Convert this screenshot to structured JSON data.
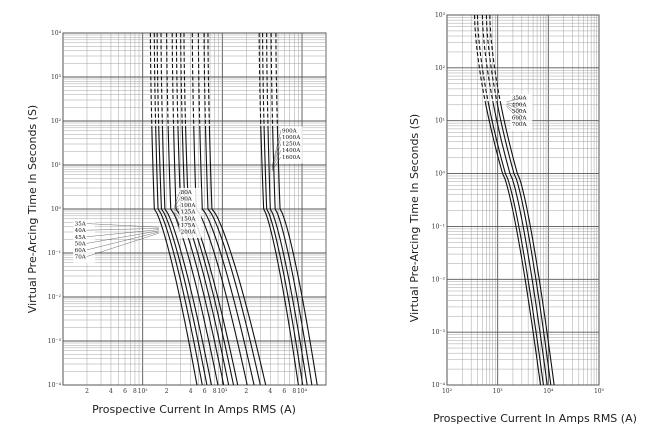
{
  "chart_data": [
    {
      "type": "line",
      "title": "",
      "xlabel": "Prospective Current In Amps RMS (A)",
      "ylabel": "Virtual Pre-Arcing Time In Seconds (S)",
      "x_scale": "log",
      "y_scale": "log",
      "xlim": [
        10,
        20000
      ],
      "ylim": [
        0.0001,
        10000
      ],
      "grid": true,
      "x_ticks": [
        {
          "v": 20,
          "label": "2"
        },
        {
          "v": 40,
          "label": "4"
        },
        {
          "v": 60,
          "label": "6"
        },
        {
          "v": 80,
          "label": "8"
        },
        {
          "v": 100,
          "label": "10²"
        },
        {
          "v": 200,
          "label": "2"
        },
        {
          "v": 400,
          "label": "4"
        },
        {
          "v": 600,
          "label": "6"
        },
        {
          "v": 800,
          "label": "8"
        },
        {
          "v": 1000,
          "label": "10³"
        },
        {
          "v": 2000,
          "label": "2"
        },
        {
          "v": 4000,
          "label": "4"
        },
        {
          "v": 6000,
          "label": "6"
        },
        {
          "v": 8000,
          "label": "8"
        },
        {
          "v": 10000,
          "label": "10⁴"
        }
      ],
      "y_ticks": [
        {
          "v": 10000,
          "label": "10⁴"
        },
        {
          "v": 1000,
          "label": "10³"
        },
        {
          "v": 100,
          "label": "10²"
        },
        {
          "v": 10,
          "label": "10¹"
        },
        {
          "v": 1,
          "label": "10⁰"
        },
        {
          "v": 0.1,
          "label": "10⁻¹"
        },
        {
          "v": 0.01,
          "label": "10⁻²"
        },
        {
          "v": 0.001,
          "label": "10⁻³"
        },
        {
          "v": 0.0001,
          "label": "10⁻⁴"
        }
      ],
      "label_groups": [
        {
          "labels": [
            "35A",
            "40A",
            "45A",
            "50A",
            "60A",
            "70A"
          ],
          "line_to_x": 160,
          "anchor_y": 0.32
        },
        {
          "labels": [
            "80A",
            "90A",
            "100A",
            "125A",
            "150A",
            "175A",
            "200A"
          ],
          "line_to_x": 250,
          "anchor_y": 0.9
        },
        {
          "labels": [
            "900A",
            "1000A",
            "1250A",
            "1400A",
            "1600A"
          ],
          "line_to_x": 4200,
          "anchor_y": 8
        }
      ],
      "series": [
        {
          "rating": "35A",
          "x_at_10000s": 125,
          "x_at_1s": 140,
          "x_at_0.0001s": 480
        },
        {
          "rating": "40A",
          "x_at_10000s": 140,
          "x_at_1s": 156,
          "x_at_0.0001s": 560
        },
        {
          "rating": "45A",
          "x_at_10000s": 152,
          "x_at_1s": 172,
          "x_at_0.0001s": 640
        },
        {
          "rating": "50A",
          "x_at_10000s": 170,
          "x_at_1s": 190,
          "x_at_0.0001s": 730
        },
        {
          "rating": "60A",
          "x_at_10000s": 200,
          "x_at_1s": 225,
          "x_at_0.0001s": 880
        },
        {
          "rating": "70A",
          "x_at_10000s": 235,
          "x_at_1s": 262,
          "x_at_0.0001s": 1040
        },
        {
          "rating": "80A",
          "x_at_10000s": 265,
          "x_at_1s": 300,
          "x_at_0.0001s": 1200
        },
        {
          "rating": "90A",
          "x_at_10000s": 300,
          "x_at_1s": 340,
          "x_at_0.0001s": 1380
        },
        {
          "rating": "100A",
          "x_at_10000s": 330,
          "x_at_1s": 375,
          "x_at_0.0001s": 1560
        },
        {
          "rating": "125A",
          "x_at_10000s": 420,
          "x_at_1s": 470,
          "x_at_0.0001s": 2050
        },
        {
          "rating": "150A",
          "x_at_10000s": 500,
          "x_at_1s": 560,
          "x_at_0.0001s": 2500
        },
        {
          "rating": "175A",
          "x_at_10000s": 590,
          "x_at_1s": 660,
          "x_at_0.0001s": 3000
        },
        {
          "rating": "200A",
          "x_at_10000s": 660,
          "x_at_1s": 740,
          "x_at_0.0001s": 3500
        },
        {
          "rating": "900A",
          "x_at_10000s": 2900,
          "x_at_1s": 3300,
          "x_at_0.0001s": 9000
        },
        {
          "rating": "1000A",
          "x_at_10000s": 3200,
          "x_at_1s": 3600,
          "x_at_0.0001s": 10200
        },
        {
          "rating": "1250A",
          "x_at_10000s": 3600,
          "x_at_1s": 4000,
          "x_at_0.0001s": 11600
        },
        {
          "rating": "1400A",
          "x_at_10000s": 4100,
          "x_at_1s": 4600,
          "x_at_0.0001s": 13300
        },
        {
          "rating": "1600A",
          "x_at_10000s": 4700,
          "x_at_1s": 5300,
          "x_at_0.0001s": 15500
        }
      ]
    },
    {
      "type": "line",
      "title": "",
      "xlabel": "Prospective Current In Amps RMS (A)",
      "ylabel": "Virtual Pre-Arcing Time In Seconds (S)",
      "x_scale": "log",
      "y_scale": "log",
      "xlim": [
        100,
        100000
      ],
      "ylim": [
        0.0001,
        1000
      ],
      "grid": true,
      "x_ticks": [
        {
          "v": 100,
          "label": "10²"
        },
        {
          "v": 1000,
          "label": "10³"
        },
        {
          "v": 10000,
          "label": "10⁴"
        },
        {
          "v": 100000,
          "label": "10⁵"
        }
      ],
      "y_ticks": [
        {
          "v": 1000,
          "label": "10³"
        },
        {
          "v": 100,
          "label": "10²"
        },
        {
          "v": 10,
          "label": "10¹"
        },
        {
          "v": 1,
          "label": "10⁰"
        },
        {
          "v": 0.1,
          "label": "10⁻¹"
        },
        {
          "v": 0.01,
          "label": "10⁻²"
        },
        {
          "v": 0.001,
          "label": "10⁻³"
        },
        {
          "v": 0.0001,
          "label": "10⁻⁴"
        }
      ],
      "label_groups": [
        {
          "labels": [
            "350A",
            "400A",
            "500A",
            "600A",
            "700A"
          ],
          "line_to_x": 1500,
          "anchor_y": 20
        }
      ],
      "series": [
        {
          "rating": "350A",
          "x_at_1000s": 350,
          "x_at_1s": 1250,
          "x_at_0.0001s": 7000
        },
        {
          "rating": "400A",
          "x_at_1000s": 400,
          "x_at_1s": 1420,
          "x_at_0.0001s": 8000
        },
        {
          "rating": "500A",
          "x_at_1000s": 500,
          "x_at_1s": 1750,
          "x_at_0.0001s": 9500
        },
        {
          "rating": "600A",
          "x_at_1000s": 600,
          "x_at_1s": 2100,
          "x_at_0.0001s": 11200
        },
        {
          "rating": "700A",
          "x_at_1000s": 700,
          "x_at_1s": 2450,
          "x_at_0.0001s": 13000
        }
      ]
    }
  ]
}
